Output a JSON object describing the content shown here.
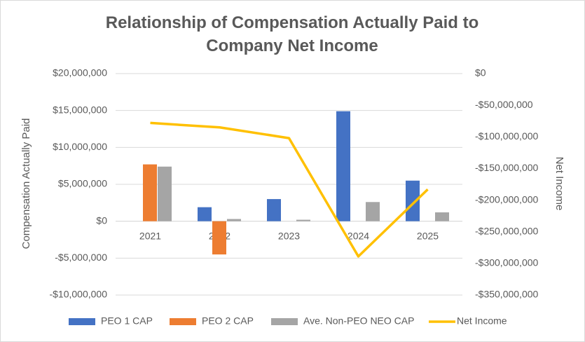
{
  "chart_data": {
    "type": "bar_line",
    "title": "Relationship of Compensation Actually Paid to Company Net Income",
    "y_label": "Compensation Actually Paid",
    "y2_label": "Net Income",
    "categories": [
      "2021",
      "2022",
      "2023",
      "2024",
      "2025"
    ],
    "series": [
      {
        "name": "PEO 1 CAP",
        "color": "#4472c4",
        "type": "bar",
        "values": [
          null,
          1900000,
          3000000,
          14900000,
          5500000
        ]
      },
      {
        "name": "PEO 2 CAP",
        "color": "#ed7d31",
        "type": "bar",
        "values": [
          7700000,
          -4500000,
          null,
          null,
          null
        ]
      },
      {
        "name": "Ave. Non-PEO NEO CAP",
        "color": "#a5a5a5",
        "type": "bar",
        "values": [
          7400000,
          300000,
          200000,
          2600000,
          1200000
        ]
      },
      {
        "name": "Net Income",
        "color": "#ffc000",
        "type": "line",
        "axis": "y2",
        "values": [
          -78000000,
          -85000000,
          -102000000,
          -289000000,
          -183000000
        ]
      }
    ],
    "ylim": [
      -10000000,
      20000000
    ],
    "yticks": [
      {
        "value": -10000000,
        "label": "-$10,000,000"
      },
      {
        "value": -5000000,
        "label": "-$5,000,000"
      },
      {
        "value": 0,
        "label": "$0"
      },
      {
        "value": 5000000,
        "label": "$5,000,000"
      },
      {
        "value": 10000000,
        "label": "$10,000,000"
      },
      {
        "value": 15000000,
        "label": "$15,000,000"
      },
      {
        "value": 20000000,
        "label": "$20,000,000"
      }
    ],
    "y2lim": [
      -350000000,
      0
    ],
    "y2ticks": [
      {
        "value": -350000000,
        "label": "-$350,000,000"
      },
      {
        "value": -300000000,
        "label": "-$300,000,000"
      },
      {
        "value": -250000000,
        "label": "-$250,000,000"
      },
      {
        "value": -200000000,
        "label": "-$200,000,000"
      },
      {
        "value": -150000000,
        "label": "-$150,000,000"
      },
      {
        "value": -100000000,
        "label": "-$100,000,000"
      },
      {
        "value": -50000000,
        "label": "-$50,000,000"
      },
      {
        "value": 0,
        "label": "$0"
      }
    ],
    "grid": true,
    "legend": "bottom"
  }
}
